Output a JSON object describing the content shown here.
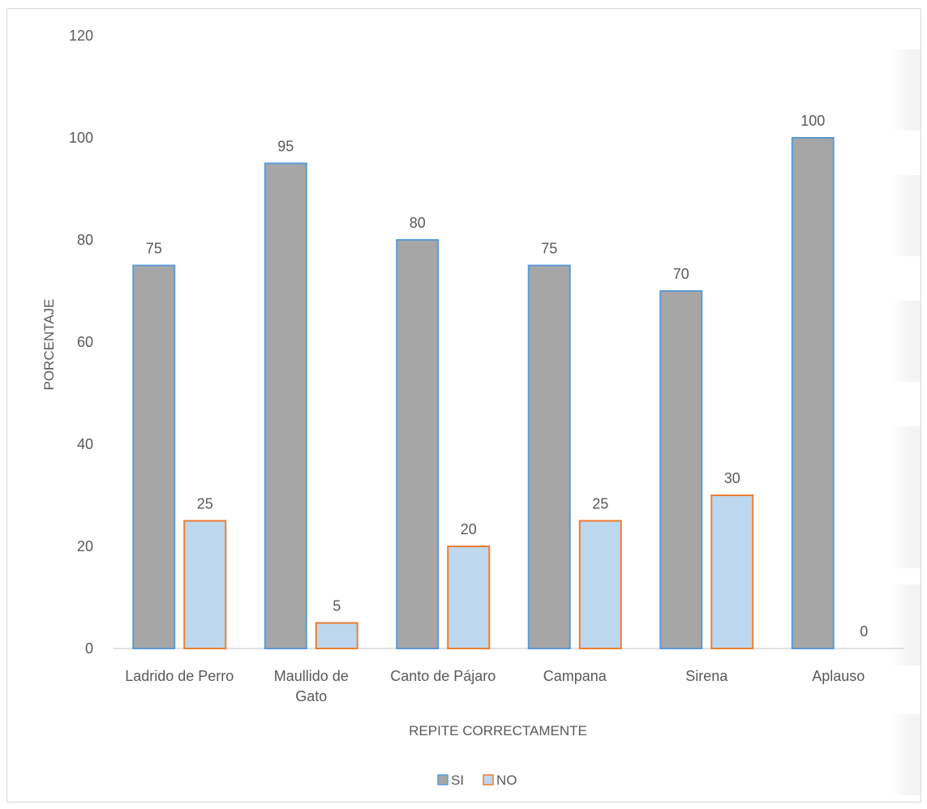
{
  "chart_data": {
    "type": "bar",
    "title": "",
    "xlabel": "REPITE CORRECTAMENTE",
    "ylabel": "PORCENTAJE",
    "ylim": [
      0,
      120
    ],
    "yticks": [
      0,
      20,
      40,
      60,
      80,
      100,
      120
    ],
    "grid": false,
    "legend": "bottom",
    "categories": [
      [
        "Ladrido de Perro"
      ],
      [
        "Maullido de",
        "Gato"
      ],
      [
        "Canto de Pájaro"
      ],
      [
        "Campana"
      ],
      [
        "Sirena"
      ],
      [
        "Aplauso"
      ]
    ],
    "series": [
      {
        "name": "SI",
        "values": [
          75,
          95,
          80,
          75,
          70,
          100
        ],
        "fill": "#a6a6a6",
        "stroke": "#5b9bd5"
      },
      {
        "name": "NO",
        "values": [
          25,
          5,
          20,
          25,
          30,
          0
        ],
        "fill": "#bdd7ee",
        "stroke": "#ed7d31"
      }
    ]
  }
}
